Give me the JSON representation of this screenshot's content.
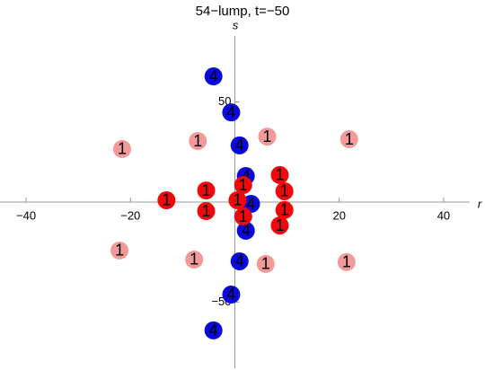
{
  "chart_data": {
    "type": "scatter",
    "title": "54−lump, t=−50",
    "xlabel": "r",
    "ylabel": "s",
    "xlim": [
      -45,
      45
    ],
    "ylim": [
      -83,
      83
    ],
    "xticks": [
      {
        "value": -40,
        "label": "−40"
      },
      {
        "value": -20,
        "label": "−20"
      },
      20,
      40
    ],
    "yticks": [
      50,
      {
        "value": -50,
        "label": "−50"
      }
    ],
    "grid": false,
    "series": [
      {
        "color": "#f29a9a",
        "x": [
          -21.6,
          -7.1,
          6.2,
          21.9,
          -22.1,
          -7.8,
          5.9,
          21.4
        ],
        "y": [
          26.5,
          30.5,
          32.7,
          31.4,
          -24.2,
          -28.7,
          -30.9,
          -30
        ],
        "labels": [
          "1",
          "1",
          "1",
          "1",
          "1",
          "1",
          "1",
          "1"
        ]
      },
      {
        "color": "#0a0adc",
        "x": [
          -4.1,
          -0.7,
          0.9,
          2.1,
          3.1,
          2.1,
          0.9,
          -0.7,
          -4.1
        ],
        "y": [
          62.8,
          44.8,
          28.3,
          13,
          -0.9,
          -14.3,
          -29.6,
          -46.2,
          -64.1
        ],
        "labels": [
          "4",
          "4",
          "4",
          "4",
          "4",
          "4",
          "4",
          "4",
          "4"
        ]
      },
      {
        "color": "#ee0a0a",
        "x": [
          -13.1,
          -5.5,
          -5.5,
          0.5,
          1.6,
          1.6,
          8.6,
          9.5,
          9.5,
          8.6
        ],
        "y": [
          0.9,
          5.8,
          -4.5,
          0.9,
          8.5,
          -7.2,
          13.5,
          5.4,
          -4,
          -11.7
        ],
        "labels": [
          "1",
          "1",
          "1",
          "1",
          "1",
          "1",
          "1",
          "1",
          "1",
          "1"
        ]
      }
    ]
  }
}
